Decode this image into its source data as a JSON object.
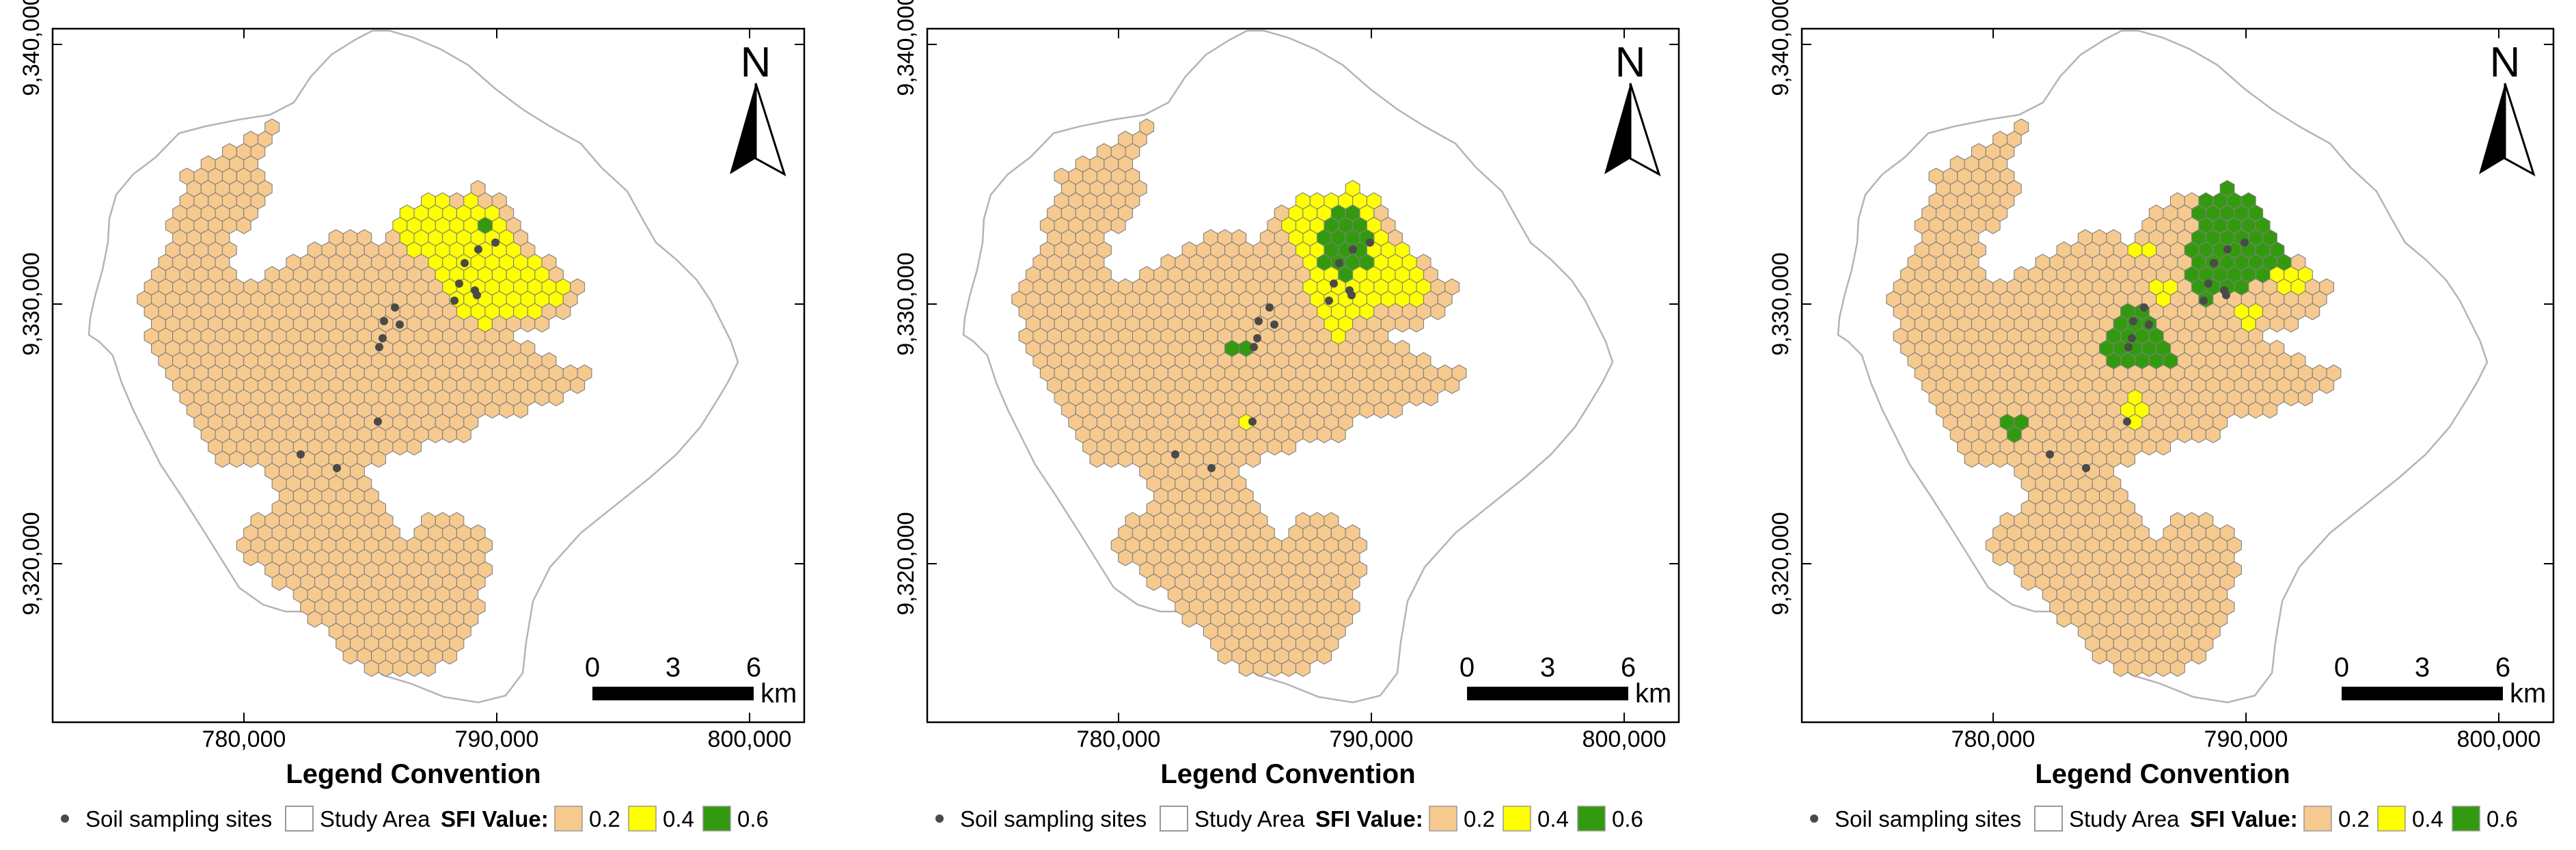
{
  "colors": {
    "sfi_02": "#f6c98e",
    "sfi_04": "#ffff00",
    "sfi_06": "#339a0f",
    "sampling_site": "#4a4a4a",
    "boundary": "#b4b4b4",
    "hex_stroke": "#808080"
  },
  "axes": {
    "x_ticks": [
      "780,000",
      "790,000",
      "800,000"
    ],
    "y_ticks": [
      "9,340,000",
      "9,330,000",
      "9,320,000"
    ]
  },
  "north_arrow": {
    "label": "N",
    "icon": "north-arrow-icon"
  },
  "scale_bar": {
    "ticks": [
      "0",
      "3",
      "6"
    ],
    "unit": "km"
  },
  "legend": {
    "title": "Legend Convention",
    "sampling_sites": "Soil sampling sites",
    "study_area": "Study Area",
    "sfi_label": "SFI Value:",
    "classes": [
      {
        "label": "0.2",
        "color": "#f6c98e"
      },
      {
        "label": "0.4",
        "color": "#ffff00"
      },
      {
        "label": "0.6",
        "color": "#339a0f"
      }
    ]
  },
  "maps": [
    {
      "sfi_classes_shown": [
        "0.2",
        "0.4",
        "0.6"
      ]
    },
    {
      "sfi_classes_shown": [
        "0.2",
        "0.4",
        "0.6"
      ]
    },
    {
      "sfi_classes_shown": [
        "0.2",
        "0.4",
        "0.6"
      ]
    }
  ]
}
